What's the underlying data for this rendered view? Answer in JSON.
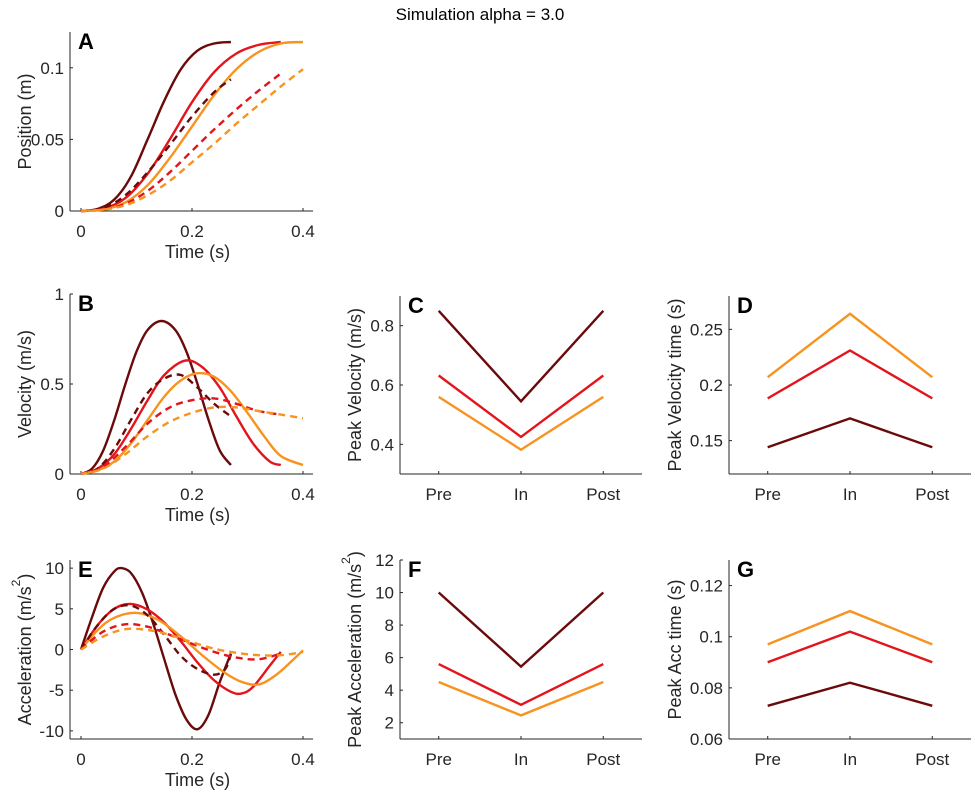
{
  "figure": {
    "title": "Simulation alpha = 3.0"
  },
  "colors": {
    "dark": "#6b0a0a",
    "red": "#e3141b",
    "orange": "#f7931e"
  },
  "chart_data": [
    {
      "id": "A",
      "letter": "A",
      "type": "line",
      "title": "",
      "xlabel": "Time (s)",
      "ylabel": "Position (m)",
      "xlim": [
        0,
        0.4
      ],
      "ylim": [
        0,
        0.125
      ],
      "xticks": [
        0,
        0.2,
        0.4
      ],
      "xtick_labels": [
        "0",
        "0.2",
        "0.4"
      ],
      "yticks": [
        0,
        0.05,
        0.1
      ],
      "ytick_labels": [
        "0",
        "0.05",
        "0.1"
      ],
      "series": [
        {
          "name": "dark-solid",
          "color": "dark",
          "dashed": false,
          "x": [
            0,
            0.03,
            0.06,
            0.09,
            0.12,
            0.15,
            0.18,
            0.21,
            0.24,
            0.27
          ],
          "y": [
            0,
            0.0015,
            0.008,
            0.024,
            0.05,
            0.077,
            0.099,
            0.112,
            0.117,
            0.118
          ]
        },
        {
          "name": "red-solid",
          "color": "red",
          "dashed": false,
          "x": [
            0,
            0.04,
            0.08,
            0.12,
            0.16,
            0.2,
            0.24,
            0.28,
            0.32,
            0.36
          ],
          "y": [
            0,
            0.0015,
            0.009,
            0.026,
            0.05,
            0.076,
            0.097,
            0.11,
            0.116,
            0.118
          ]
        },
        {
          "name": "orange-solid",
          "color": "orange",
          "dashed": false,
          "x": [
            0,
            0.04,
            0.08,
            0.12,
            0.16,
            0.2,
            0.24,
            0.28,
            0.32,
            0.36,
            0.4
          ],
          "y": [
            0,
            0.001,
            0.006,
            0.018,
            0.037,
            0.059,
            0.081,
            0.099,
            0.111,
            0.117,
            0.118
          ]
        },
        {
          "name": "dark-dashed",
          "color": "dark",
          "dashed": true,
          "x": [
            0,
            0.04,
            0.08,
            0.12,
            0.16,
            0.2,
            0.24,
            0.27
          ],
          "y": [
            0,
            0.002,
            0.011,
            0.027,
            0.046,
            0.066,
            0.083,
            0.092
          ]
        },
        {
          "name": "red-dashed",
          "color": "red",
          "dashed": true,
          "x": [
            0,
            0.04,
            0.08,
            0.12,
            0.16,
            0.2,
            0.24,
            0.28,
            0.32,
            0.36
          ],
          "y": [
            0,
            0.001,
            0.005,
            0.014,
            0.027,
            0.042,
            0.057,
            0.071,
            0.084,
            0.096
          ]
        },
        {
          "name": "orange-dashed",
          "color": "orange",
          "dashed": true,
          "x": [
            0,
            0.04,
            0.08,
            0.12,
            0.16,
            0.2,
            0.24,
            0.28,
            0.32,
            0.36,
            0.4
          ],
          "y": [
            0,
            0.001,
            0.004,
            0.011,
            0.021,
            0.034,
            0.047,
            0.061,
            0.074,
            0.087,
            0.099
          ]
        }
      ]
    },
    {
      "id": "B",
      "letter": "B",
      "type": "line",
      "title": "",
      "xlabel": "Time (s)",
      "ylabel": "Velocity (m/s)",
      "xlim": [
        0,
        0.4
      ],
      "ylim": [
        0,
        1
      ],
      "xticks": [
        0,
        0.2,
        0.4
      ],
      "xtick_labels": [
        "0",
        "0.2",
        "0.4"
      ],
      "yticks": [
        0,
        0.5,
        1
      ],
      "ytick_labels": [
        "0",
        "0.5",
        "1"
      ],
      "series": [
        {
          "name": "dark-solid",
          "color": "dark",
          "dashed": false,
          "x": [
            0,
            0.02,
            0.04,
            0.06,
            0.08,
            0.1,
            0.12,
            0.145,
            0.17,
            0.19,
            0.21,
            0.23,
            0.25,
            0.27
          ],
          "y": [
            0,
            0.03,
            0.13,
            0.3,
            0.5,
            0.68,
            0.8,
            0.85,
            0.8,
            0.68,
            0.5,
            0.3,
            0.13,
            0.05
          ]
        },
        {
          "name": "red-solid",
          "color": "red",
          "dashed": false,
          "x": [
            0,
            0.03,
            0.06,
            0.09,
            0.12,
            0.15,
            0.188,
            0.22,
            0.25,
            0.28,
            0.31,
            0.34,
            0.36
          ],
          "y": [
            0,
            0.03,
            0.11,
            0.25,
            0.41,
            0.55,
            0.63,
            0.59,
            0.48,
            0.32,
            0.17,
            0.07,
            0.05
          ]
        },
        {
          "name": "orange-solid",
          "color": "orange",
          "dashed": false,
          "x": [
            0,
            0.03,
            0.06,
            0.09,
            0.12,
            0.15,
            0.18,
            0.21,
            0.24,
            0.27,
            0.3,
            0.33,
            0.36,
            0.4
          ],
          "y": [
            0,
            0.02,
            0.07,
            0.17,
            0.3,
            0.43,
            0.52,
            0.56,
            0.54,
            0.46,
            0.34,
            0.21,
            0.1,
            0.05
          ]
        },
        {
          "name": "dark-dashed",
          "color": "dark",
          "dashed": true,
          "x": [
            0,
            0.03,
            0.06,
            0.09,
            0.12,
            0.15,
            0.18,
            0.21,
            0.24,
            0.27
          ],
          "y": [
            0,
            0.03,
            0.14,
            0.3,
            0.45,
            0.53,
            0.55,
            0.48,
            0.39,
            0.32
          ]
        },
        {
          "name": "red-dashed",
          "color": "red",
          "dashed": true,
          "x": [
            0,
            0.04,
            0.08,
            0.12,
            0.16,
            0.2,
            0.24,
            0.28,
            0.32,
            0.36
          ],
          "y": [
            0,
            0.04,
            0.15,
            0.28,
            0.37,
            0.41,
            0.42,
            0.39,
            0.35,
            0.33
          ]
        },
        {
          "name": "orange-dashed",
          "color": "orange",
          "dashed": true,
          "x": [
            0,
            0.04,
            0.08,
            0.12,
            0.16,
            0.2,
            0.24,
            0.28,
            0.32,
            0.36,
            0.4
          ],
          "y": [
            0,
            0.03,
            0.11,
            0.21,
            0.29,
            0.34,
            0.37,
            0.37,
            0.35,
            0.33,
            0.31
          ]
        }
      ]
    },
    {
      "id": "C",
      "letter": "C",
      "type": "line",
      "title": "",
      "xlabel": "",
      "ylabel": "Peak Velocity (m/s)",
      "categories": [
        "Pre",
        "In",
        "Post"
      ],
      "ylim": [
        0.3,
        0.9
      ],
      "yticks": [
        0.4,
        0.6,
        0.8
      ],
      "ytick_labels": [
        "0.4",
        "0.6",
        "0.8"
      ],
      "series": [
        {
          "name": "dark",
          "color": "dark",
          "values": [
            0.85,
            0.545,
            0.85
          ]
        },
        {
          "name": "red",
          "color": "red",
          "values": [
            0.632,
            0.425,
            0.632
          ]
        },
        {
          "name": "orange",
          "color": "orange",
          "values": [
            0.56,
            0.382,
            0.56
          ]
        }
      ]
    },
    {
      "id": "D",
      "letter": "D",
      "type": "line",
      "title": "",
      "xlabel": "",
      "ylabel": "Peak Velocity time (s)",
      "categories": [
        "Pre",
        "In",
        "Post"
      ],
      "ylim": [
        0.12,
        0.28
      ],
      "yticks": [
        0.15,
        0.2,
        0.25
      ],
      "ytick_labels": [
        "0.15",
        "0.2",
        "0.25"
      ],
      "series": [
        {
          "name": "dark",
          "color": "dark",
          "values": [
            0.144,
            0.17,
            0.144
          ]
        },
        {
          "name": "red",
          "color": "red",
          "values": [
            0.188,
            0.231,
            0.188
          ]
        },
        {
          "name": "orange",
          "color": "orange",
          "values": [
            0.207,
            0.264,
            0.207
          ]
        }
      ]
    },
    {
      "id": "E",
      "letter": "E",
      "type": "line",
      "title": "",
      "xlabel": "Time (s)",
      "ylabel": "Acceleration (m/s",
      "ylabel_sup": "2",
      "ylabel_end": ")",
      "xlim": [
        0,
        0.4
      ],
      "ylim": [
        -11,
        11
      ],
      "xticks": [
        0,
        0.2,
        0.4
      ],
      "xtick_labels": [
        "0",
        "0.2",
        "0.4"
      ],
      "yticks": [
        -10,
        -5,
        0,
        5,
        10
      ],
      "ytick_labels": [
        "-10",
        "-5",
        "0",
        "5",
        "10"
      ],
      "series": [
        {
          "name": "dark-solid",
          "color": "dark",
          "dashed": false,
          "x": [
            0,
            0.02,
            0.04,
            0.06,
            0.073,
            0.09,
            0.11,
            0.13,
            0.15,
            0.17,
            0.19,
            0.21,
            0.23,
            0.25,
            0.27
          ],
          "y": [
            0,
            4,
            7.6,
            9.6,
            10,
            9.4,
            7,
            3.2,
            -1.2,
            -5.5,
            -8.6,
            -9.8,
            -8,
            -4,
            -0.5
          ]
        },
        {
          "name": "red-solid",
          "color": "red",
          "dashed": false,
          "x": [
            0,
            0.03,
            0.06,
            0.09,
            0.12,
            0.15,
            0.18,
            0.21,
            0.24,
            0.27,
            0.29,
            0.31,
            0.34,
            0.36
          ],
          "y": [
            0,
            3,
            5,
            5.6,
            4.9,
            3.3,
            1,
            -1.6,
            -3.8,
            -5.2,
            -5.4,
            -4.6,
            -2,
            -0.3
          ]
        },
        {
          "name": "orange-solid",
          "color": "orange",
          "dashed": false,
          "x": [
            0,
            0.03,
            0.06,
            0.1,
            0.14,
            0.18,
            0.22,
            0.26,
            0.29,
            0.32,
            0.35,
            0.38,
            0.4
          ],
          "y": [
            0,
            2.4,
            3.9,
            4.5,
            3.6,
            1.6,
            -0.8,
            -2.9,
            -4,
            -4.3,
            -3.2,
            -1.4,
            -0.1
          ]
        },
        {
          "name": "dark-dashed",
          "color": "dark",
          "dashed": true,
          "x": [
            0,
            0.03,
            0.06,
            0.09,
            0.12,
            0.15,
            0.18,
            0.21,
            0.24,
            0.26,
            0.27
          ],
          "y": [
            0,
            3,
            5,
            5.4,
            4.2,
            1.8,
            -0.8,
            -2.4,
            -3.1,
            -2.4,
            -0.6
          ]
        },
        {
          "name": "red-dashed",
          "color": "red",
          "dashed": true,
          "x": [
            0,
            0.04,
            0.08,
            0.12,
            0.16,
            0.2,
            0.24,
            0.28,
            0.32,
            0.36
          ],
          "y": [
            0,
            2.2,
            3.1,
            2.8,
            1.8,
            0.7,
            -0.3,
            -1,
            -1.2,
            -0.5
          ]
        },
        {
          "name": "orange-dashed",
          "color": "orange",
          "dashed": true,
          "x": [
            0,
            0.04,
            0.08,
            0.12,
            0.16,
            0.2,
            0.24,
            0.28,
            0.32,
            0.36,
            0.4
          ],
          "y": [
            0,
            1.6,
            2.5,
            2.4,
            1.8,
            0.9,
            0.1,
            -0.4,
            -0.7,
            -0.7,
            -0.3
          ]
        }
      ]
    },
    {
      "id": "F",
      "letter": "F",
      "type": "line",
      "title": "",
      "xlabel": "",
      "ylabel": "Peak Acceleration (m/s",
      "ylabel_sup": "2",
      "ylabel_end": ")",
      "categories": [
        "Pre",
        "In",
        "Post"
      ],
      "ylim": [
        1,
        12
      ],
      "yticks": [
        2,
        4,
        6,
        8,
        10,
        12
      ],
      "ytick_labels": [
        "2",
        "4",
        "6",
        "8",
        "10",
        "12"
      ],
      "series": [
        {
          "name": "dark",
          "color": "dark",
          "values": [
            10,
            5.45,
            10
          ]
        },
        {
          "name": "red",
          "color": "red",
          "values": [
            5.6,
            3.1,
            5.6
          ]
        },
        {
          "name": "orange",
          "color": "orange",
          "values": [
            4.5,
            2.45,
            4.5
          ]
        }
      ]
    },
    {
      "id": "G",
      "letter": "G",
      "type": "line",
      "title": "",
      "xlabel": "",
      "ylabel": "Peak Acc time (s)",
      "categories": [
        "Pre",
        "In",
        "Post"
      ],
      "ylim": [
        0.06,
        0.13
      ],
      "yticks": [
        0.06,
        0.08,
        0.1,
        0.12
      ],
      "ytick_labels": [
        "0.06",
        "0.08",
        "0.1",
        "0.12"
      ],
      "series": [
        {
          "name": "dark",
          "color": "dark",
          "values": [
            0.073,
            0.082,
            0.073
          ]
        },
        {
          "name": "red",
          "color": "red",
          "values": [
            0.09,
            0.102,
            0.09
          ]
        },
        {
          "name": "orange",
          "color": "orange",
          "values": [
            0.097,
            0.11,
            0.097
          ]
        }
      ]
    }
  ]
}
